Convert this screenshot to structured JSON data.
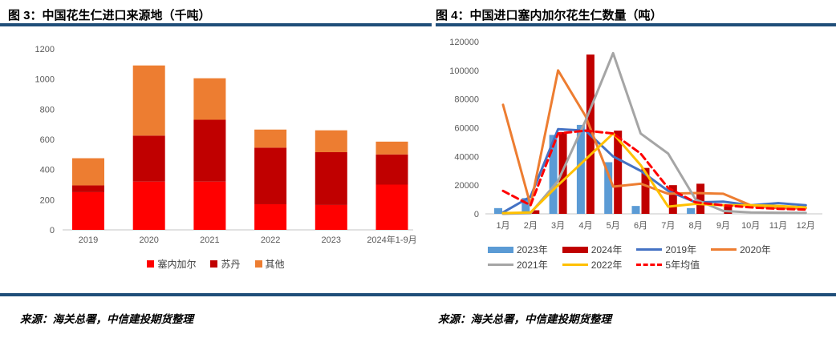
{
  "accent_color": "#1F4E79",
  "panels": [
    {
      "title": "图 3：中国花生仁进口来源地（千吨）",
      "source": "来源：海关总署，中信建投期货整理"
    },
    {
      "title": "图 4：中国进口塞内加尔花生仁数量（吨）",
      "source": "来源：海关总署，中信建投期货整理"
    }
  ],
  "chart_data": [
    {
      "type": "bar",
      "stacked": true,
      "title": "图 3：中国花生仁进口来源地（千吨）",
      "categories": [
        "2019",
        "2020",
        "2021",
        "2022",
        "2023",
        "2024年1-9月"
      ],
      "series": [
        {
          "name": "塞内加尔",
          "color": "#FF0000",
          "values": [
            250,
            320,
            320,
            170,
            165,
            300
          ]
        },
        {
          "name": "苏丹",
          "color": "#C00000",
          "values": [
            45,
            305,
            410,
            375,
            350,
            200
          ]
        },
        {
          "name": "其他",
          "color": "#ED7D31",
          "values": [
            180,
            465,
            275,
            120,
            145,
            85
          ]
        }
      ],
      "ylim": [
        0,
        1200
      ],
      "yticks": [
        0,
        200,
        400,
        600,
        800,
        1000,
        1200
      ],
      "grid": false,
      "legend_position": "bottom"
    },
    {
      "type": "bar",
      "subtype": "combo-bar-line",
      "title": "图 4：中国进口塞内加尔花生仁数量（吨）",
      "categories": [
        "1月",
        "2月",
        "3月",
        "4月",
        "5月",
        "6月",
        "7月",
        "8月",
        "9月",
        "10月",
        "11月",
        "12月"
      ],
      "bar_series": [
        {
          "name": "2023年",
          "color": "#5B9BD5",
          "values": [
            4000,
            11000,
            55000,
            62000,
            36000,
            5500,
            0,
            4000,
            0,
            0,
            0,
            0
          ]
        },
        {
          "name": "2024年",
          "color": "#C00000",
          "values": [
            0,
            2500,
            57000,
            111000,
            58000,
            32000,
            20000,
            21000,
            6000,
            0,
            0,
            0
          ]
        }
      ],
      "line_series": [
        {
          "name": "2019年",
          "color": "#4472C4",
          "dash": false,
          "values": [
            1000,
            12000,
            59000,
            58000,
            40000,
            30000,
            16000,
            8000,
            8500,
            6000,
            7500,
            6000
          ]
        },
        {
          "name": "2020年",
          "color": "#ED7D31",
          "dash": false,
          "values": [
            76000,
            6000,
            100000,
            68000,
            19000,
            21000,
            14000,
            14500,
            14000,
            6000,
            4000,
            4000
          ]
        },
        {
          "name": "2021年",
          "color": "#A5A5A5",
          "dash": false,
          "values": [
            0,
            500,
            23000,
            65000,
            112000,
            56000,
            42000,
            10000,
            2000,
            1000,
            800,
            700
          ]
        },
        {
          "name": "2022年",
          "color": "#FFC000",
          "dash": false,
          "values": [
            500,
            1000,
            20000,
            38000,
            56000,
            34000,
            5000,
            7000,
            6000,
            6000,
            5500,
            4500
          ]
        },
        {
          "name": "5年均值",
          "color": "#FF0000",
          "dash": true,
          "values": [
            16000,
            6000,
            56000,
            58000,
            56000,
            42000,
            18000,
            8000,
            6000,
            4500,
            3500,
            3000
          ]
        }
      ],
      "ylim": [
        0,
        120000
      ],
      "yticks": [
        0,
        20000,
        40000,
        60000,
        80000,
        100000,
        120000
      ],
      "grid": false,
      "legend_position": "bottom"
    }
  ]
}
